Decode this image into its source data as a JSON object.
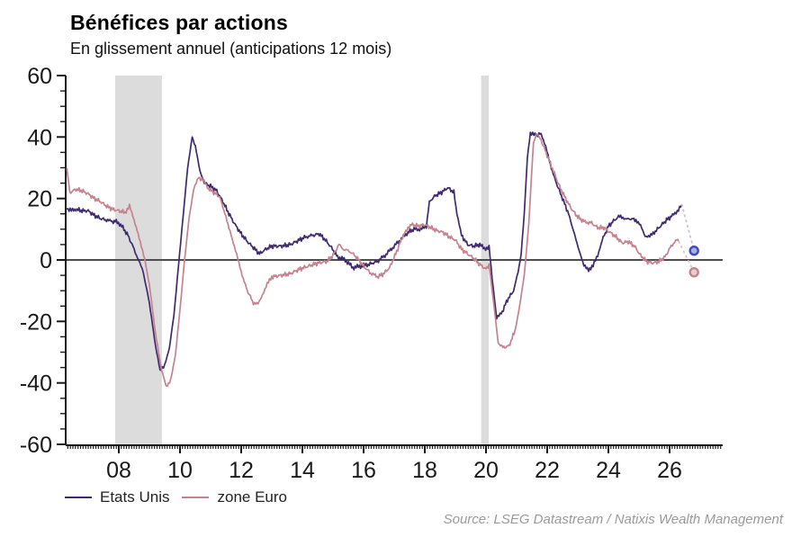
{
  "title": "Bénéfices par actions",
  "subtitle": "En glissement annuel (anticipations 12 mois)",
  "source": "Source: LSEG Datastream / Natixis Wealth Management",
  "legend": [
    {
      "label": "Etats Unis",
      "color": "#3f2a70"
    },
    {
      "label": "zone Euro",
      "color": "#c4838f"
    }
  ],
  "chart_data": {
    "type": "line",
    "title": "Bénéfices par actions",
    "subtitle": "En glissement annuel (anticipations 12 mois)",
    "xlabel": "",
    "ylabel": "",
    "ylim": [
      -60,
      60
    ],
    "xlim": [
      2006.26,
      2027.74
    ],
    "y_ticks": [
      60,
      40,
      20,
      0,
      -20,
      -40,
      -60
    ],
    "y_minor_step": 5,
    "x_ticks": [
      2008,
      2010,
      2012,
      2014,
      2016,
      2018,
      2020,
      2022,
      2024,
      2026
    ],
    "x_tick_labels": [
      "08",
      "10",
      "12",
      "14",
      "16",
      "18",
      "20",
      "22",
      "24",
      "26"
    ],
    "x_minor_step_months": 1,
    "grid": false,
    "zero_line": true,
    "zero_line_color": "#4d4d4d",
    "band_color": "#dcdcdc",
    "recession_bands": [
      [
        2007.88,
        2009.41
      ],
      [
        2019.84,
        2020.09
      ]
    ],
    "legend_position": "bottom-left",
    "series": [
      {
        "name": "Etats Unis",
        "color": "#3f2a70",
        "points": [
          [
            2006.3,
            16.5
          ],
          [
            2006.45,
            16
          ],
          [
            2006.6,
            16.5
          ],
          [
            2006.8,
            16
          ],
          [
            2007.0,
            16
          ],
          [
            2007.2,
            14.5
          ],
          [
            2007.4,
            13.5
          ],
          [
            2007.6,
            13
          ],
          [
            2007.75,
            12.5
          ],
          [
            2007.95,
            12.5
          ],
          [
            2008.1,
            11
          ],
          [
            2008.3,
            8
          ],
          [
            2008.5,
            3.5
          ],
          [
            2008.65,
            0
          ],
          [
            2008.8,
            -4
          ],
          [
            2009.0,
            -14
          ],
          [
            2009.2,
            -28
          ],
          [
            2009.35,
            -36
          ],
          [
            2009.5,
            -34
          ],
          [
            2009.65,
            -29
          ],
          [
            2009.8,
            -18
          ],
          [
            2009.95,
            -2
          ],
          [
            2010.1,
            14
          ],
          [
            2010.25,
            30
          ],
          [
            2010.4,
            40
          ],
          [
            2010.5,
            37
          ],
          [
            2010.65,
            29
          ],
          [
            2010.8,
            25
          ],
          [
            2011.0,
            24
          ],
          [
            2011.2,
            22.5
          ],
          [
            2011.4,
            19
          ],
          [
            2011.6,
            15
          ],
          [
            2011.8,
            11.5
          ],
          [
            2012.0,
            8.5
          ],
          [
            2012.2,
            6
          ],
          [
            2012.4,
            4
          ],
          [
            2012.6,
            2
          ],
          [
            2012.8,
            3.5
          ],
          [
            2013.0,
            4.5
          ],
          [
            2013.3,
            4.5
          ],
          [
            2013.6,
            5
          ],
          [
            2013.9,
            6.5
          ],
          [
            2014.1,
            7.5
          ],
          [
            2014.35,
            8
          ],
          [
            2014.55,
            8.5
          ],
          [
            2014.75,
            6.5
          ],
          [
            2014.95,
            4
          ],
          [
            2015.15,
            1
          ],
          [
            2015.4,
            0
          ],
          [
            2015.65,
            -2.5
          ],
          [
            2015.9,
            -2
          ],
          [
            2016.15,
            -1.5
          ],
          [
            2016.45,
            -0.5
          ],
          [
            2016.7,
            1.5
          ],
          [
            2016.95,
            4
          ],
          [
            2017.2,
            6.5
          ],
          [
            2017.45,
            9
          ],
          [
            2017.65,
            10
          ],
          [
            2017.9,
            10
          ],
          [
            2018.05,
            11
          ],
          [
            2018.15,
            19
          ],
          [
            2018.35,
            21
          ],
          [
            2018.55,
            22
          ],
          [
            2018.75,
            23.5
          ],
          [
            2018.95,
            22
          ],
          [
            2019.05,
            15
          ],
          [
            2019.2,
            8
          ],
          [
            2019.4,
            5
          ],
          [
            2019.6,
            4.5
          ],
          [
            2019.8,
            5
          ],
          [
            2019.95,
            3.5
          ],
          [
            2020.1,
            4.5
          ],
          [
            2020.2,
            -6
          ],
          [
            2020.35,
            -19
          ],
          [
            2020.5,
            -17.5
          ],
          [
            2020.7,
            -13
          ],
          [
            2020.9,
            -10
          ],
          [
            2021.05,
            -4
          ],
          [
            2021.15,
            2
          ],
          [
            2021.25,
            15
          ],
          [
            2021.35,
            33
          ],
          [
            2021.45,
            41.5
          ],
          [
            2021.6,
            40.5
          ],
          [
            2021.8,
            41
          ],
          [
            2021.95,
            37
          ],
          [
            2022.1,
            31
          ],
          [
            2022.3,
            25
          ],
          [
            2022.5,
            20
          ],
          [
            2022.7,
            15
          ],
          [
            2022.9,
            8
          ],
          [
            2023.05,
            3
          ],
          [
            2023.2,
            -2
          ],
          [
            2023.35,
            -3
          ],
          [
            2023.5,
            -2
          ],
          [
            2023.65,
            1.5
          ],
          [
            2023.8,
            6.5
          ],
          [
            2024.0,
            11
          ],
          [
            2024.2,
            13
          ],
          [
            2024.4,
            14.5
          ],
          [
            2024.55,
            13
          ],
          [
            2024.7,
            13.5
          ],
          [
            2024.9,
            13
          ],
          [
            2025.05,
            11
          ],
          [
            2025.2,
            8
          ],
          [
            2025.35,
            7.5
          ],
          [
            2025.5,
            9
          ],
          [
            2025.7,
            11
          ],
          [
            2025.9,
            13
          ],
          [
            2026.1,
            14.5
          ],
          [
            2026.25,
            16
          ],
          [
            2026.4,
            18
          ]
        ]
      },
      {
        "name": "zone Euro",
        "color": "#c4838f",
        "points": [
          [
            2006.3,
            30
          ],
          [
            2006.4,
            22
          ],
          [
            2006.6,
            23
          ],
          [
            2006.8,
            22.5
          ],
          [
            2007.0,
            21.5
          ],
          [
            2007.2,
            20
          ],
          [
            2007.4,
            19
          ],
          [
            2007.6,
            17.5
          ],
          [
            2007.8,
            16.5
          ],
          [
            2008.0,
            16
          ],
          [
            2008.2,
            15.5
          ],
          [
            2008.35,
            17.5
          ],
          [
            2008.5,
            13
          ],
          [
            2008.7,
            6
          ],
          [
            2008.85,
            0
          ],
          [
            2009.0,
            -8
          ],
          [
            2009.2,
            -24
          ],
          [
            2009.4,
            -36
          ],
          [
            2009.55,
            -41
          ],
          [
            2009.7,
            -39
          ],
          [
            2009.85,
            -31
          ],
          [
            2010.0,
            -16
          ],
          [
            2010.15,
            0
          ],
          [
            2010.3,
            14
          ],
          [
            2010.45,
            23
          ],
          [
            2010.6,
            27
          ],
          [
            2010.75,
            26
          ],
          [
            2010.9,
            23.5
          ],
          [
            2011.1,
            22
          ],
          [
            2011.3,
            20.5
          ],
          [
            2011.5,
            14
          ],
          [
            2011.7,
            7
          ],
          [
            2011.85,
            2
          ],
          [
            2012.0,
            -4
          ],
          [
            2012.2,
            -10
          ],
          [
            2012.4,
            -14
          ],
          [
            2012.55,
            -14.5
          ],
          [
            2012.7,
            -11
          ],
          [
            2012.85,
            -8
          ],
          [
            2013.0,
            -5.5
          ],
          [
            2013.3,
            -5
          ],
          [
            2013.6,
            -4.5
          ],
          [
            2013.9,
            -3
          ],
          [
            2014.2,
            -2
          ],
          [
            2014.5,
            -1
          ],
          [
            2014.8,
            -0.5
          ],
          [
            2015.0,
            1.5
          ],
          [
            2015.2,
            5
          ],
          [
            2015.35,
            3.5
          ],
          [
            2015.6,
            2.5
          ],
          [
            2015.8,
            0.5
          ],
          [
            2016.0,
            -2
          ],
          [
            2016.2,
            -4
          ],
          [
            2016.45,
            -5.5
          ],
          [
            2016.65,
            -4.5
          ],
          [
            2016.85,
            -2.5
          ],
          [
            2017.05,
            2
          ],
          [
            2017.25,
            7
          ],
          [
            2017.45,
            10.5
          ],
          [
            2017.6,
            11.5
          ],
          [
            2017.8,
            11
          ],
          [
            2018.0,
            11.5
          ],
          [
            2018.2,
            10.5
          ],
          [
            2018.4,
            9.5
          ],
          [
            2018.6,
            9
          ],
          [
            2018.8,
            7.5
          ],
          [
            2019.0,
            6.5
          ],
          [
            2019.2,
            3.5
          ],
          [
            2019.4,
            2
          ],
          [
            2019.6,
            0.5
          ],
          [
            2019.8,
            -1.5
          ],
          [
            2020.0,
            -3
          ],
          [
            2020.1,
            -1.5
          ],
          [
            2020.25,
            -14
          ],
          [
            2020.4,
            -27
          ],
          [
            2020.55,
            -28.5
          ],
          [
            2020.75,
            -28
          ],
          [
            2020.95,
            -23
          ],
          [
            2021.1,
            -15
          ],
          [
            2021.25,
            -5
          ],
          [
            2021.4,
            12
          ],
          [
            2021.55,
            38
          ],
          [
            2021.65,
            41
          ],
          [
            2021.8,
            39
          ],
          [
            2022.0,
            34
          ],
          [
            2022.2,
            29
          ],
          [
            2022.4,
            24
          ],
          [
            2022.6,
            20
          ],
          [
            2022.8,
            16.5
          ],
          [
            2023.0,
            14
          ],
          [
            2023.2,
            12.5
          ],
          [
            2023.45,
            12
          ],
          [
            2023.65,
            10.5
          ],
          [
            2023.85,
            10.5
          ],
          [
            2024.05,
            9
          ],
          [
            2024.25,
            7.5
          ],
          [
            2024.45,
            5.5
          ],
          [
            2024.65,
            6
          ],
          [
            2024.85,
            4.5
          ],
          [
            2025.05,
            1.5
          ],
          [
            2025.25,
            -0.5
          ],
          [
            2025.45,
            -1
          ],
          [
            2025.65,
            -0.5
          ],
          [
            2025.85,
            1
          ],
          [
            2026.05,
            4.5
          ],
          [
            2026.2,
            6.5
          ],
          [
            2026.3,
            6
          ]
        ]
      }
    ],
    "forecast_points": [
      {
        "series": "Etats Unis",
        "x": 2026.8,
        "y": 3,
        "from": [
          2026.4,
          18
        ],
        "line_color": "#c5c5d8",
        "stroke": "#3b4cc0",
        "fill": "#a7b0e6"
      },
      {
        "series": "zone Euro",
        "x": 2026.8,
        "y": -4,
        "from": [
          2026.3,
          6
        ],
        "line_color": "#dcc3ca",
        "stroke": "#c4848f",
        "fill": "#e7ccd2"
      }
    ]
  }
}
